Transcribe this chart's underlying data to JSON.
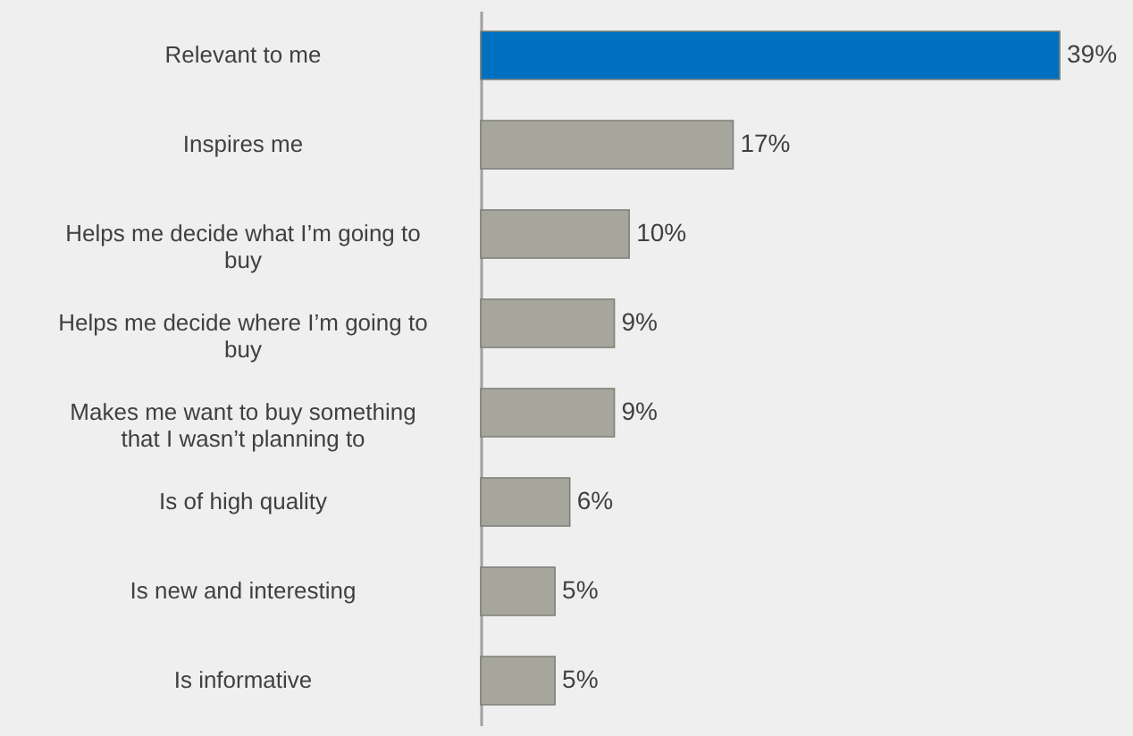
{
  "chart_data": {
    "type": "bar",
    "orientation": "horizontal",
    "categories": [
      "Relevant to me",
      "Inspires me",
      "Helps me decide what I’m going to buy",
      "Helps me decide where I’m going to buy",
      "Makes me want to buy something that I wasn’t planning to",
      "Is of high quality",
      "Is new and interesting",
      "Is informative"
    ],
    "values": [
      39,
      17,
      10,
      9,
      9,
      6,
      5,
      5
    ],
    "value_labels": [
      "39%",
      "17%",
      "10%",
      "9%",
      "9%",
      "6%",
      "5%",
      "5%"
    ],
    "colors": [
      "#0070c0",
      "#a6a69c",
      "#a6a69c",
      "#a6a69c",
      "#a6a69c",
      "#a6a69c",
      "#a6a69c",
      "#a6a69c"
    ],
    "grid": false
  }
}
